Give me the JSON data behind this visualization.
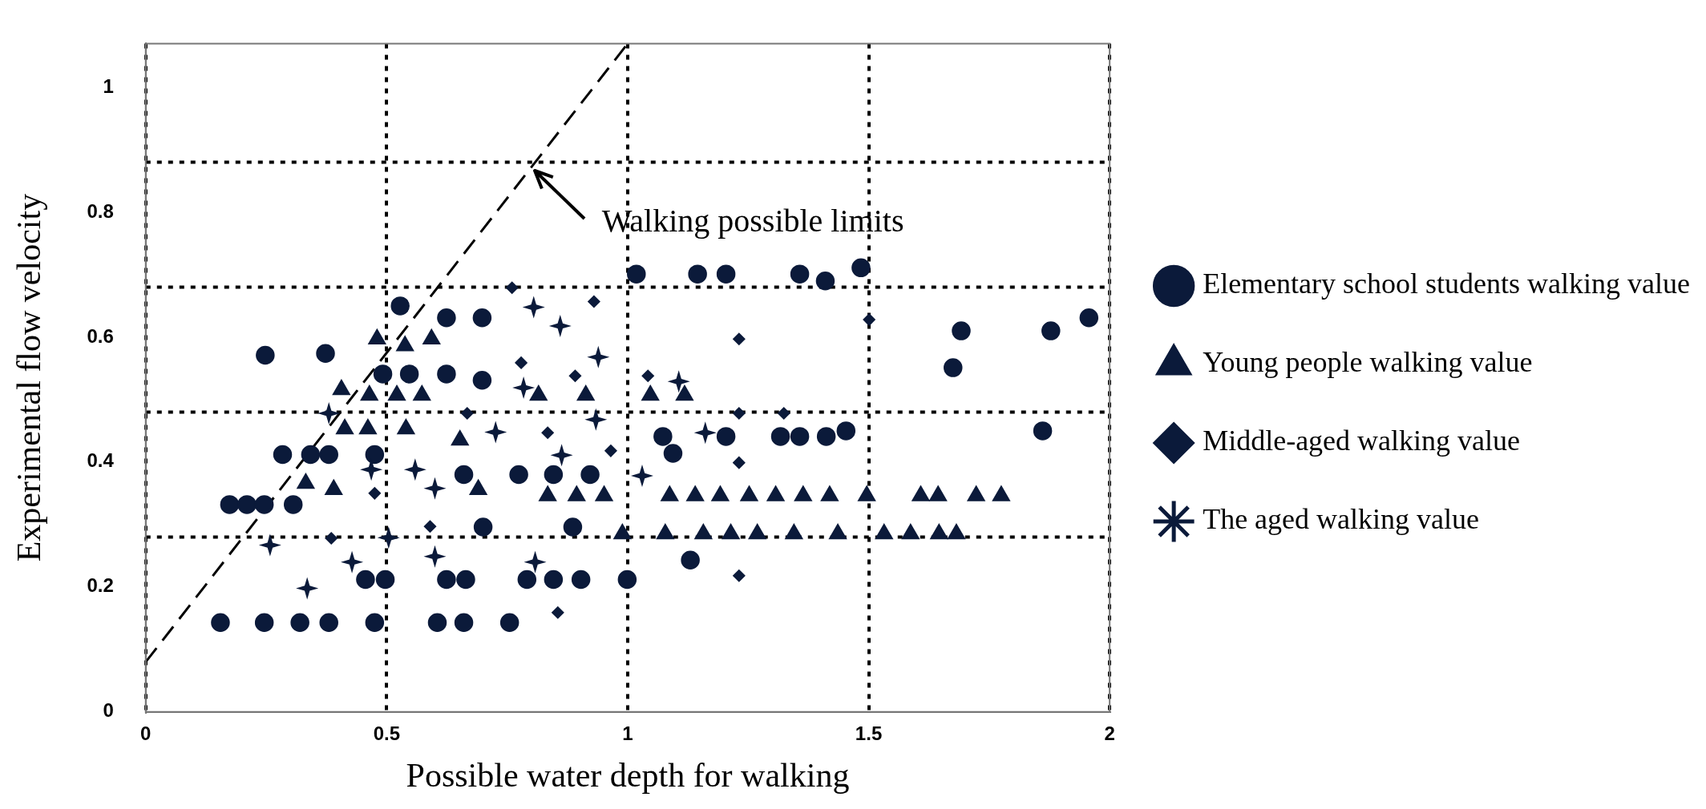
{
  "chart_data": {
    "type": "scatter",
    "xlabel": "Possible water depth for walking",
    "ylabel": "Experimental flow velocity",
    "xlim": [
      0,
      2
    ],
    "xticks": [
      0,
      0.5,
      1,
      1.5,
      2
    ],
    "ylim": [
      0,
      1.07
    ],
    "yticks": [
      0,
      0.2,
      0.4,
      0.6,
      0.8,
      1
    ],
    "grid": "x",
    "legend": "right",
    "series": [
      {
        "name": "Elementary school students walking value",
        "color": "#0b1a3a",
        "marker": "circle",
        "x": [
          0.155,
          0.246,
          0.32,
          0.38,
          0.475,
          0.605,
          0.66,
          0.755,
          0.456,
          0.497,
          0.624,
          0.664,
          0.791,
          0.846,
          0.903,
          0.999,
          0.7,
          0.886,
          0.174,
          0.21,
          0.246,
          0.306,
          0.284,
          0.342,
          0.38,
          0.475,
          0.66,
          0.774,
          0.846,
          0.922,
          1.073,
          1.204,
          1.317,
          1.357,
          1.412,
          1.453,
          1.861,
          1.094,
          1.13,
          1.018,
          1.145,
          1.204,
          1.357,
          1.41,
          1.484,
          1.692,
          1.878,
          1.957,
          1.675,
          0.528,
          0.624,
          0.698,
          0.248,
          0.373,
          0.492,
          0.547,
          0.624,
          0.698
        ],
        "values": [
          0.143,
          0.143,
          0.143,
          0.143,
          0.143,
          0.143,
          0.143,
          0.143,
          0.212,
          0.212,
          0.212,
          0.212,
          0.212,
          0.212,
          0.212,
          0.212,
          0.296,
          0.296,
          0.332,
          0.332,
          0.332,
          0.332,
          0.412,
          0.412,
          0.412,
          0.412,
          0.38,
          0.38,
          0.38,
          0.38,
          0.441,
          0.441,
          0.441,
          0.441,
          0.441,
          0.45,
          0.45,
          0.414,
          0.243,
          0.701,
          0.701,
          0.701,
          0.701,
          0.69,
          0.711,
          0.61,
          0.61,
          0.631,
          0.551,
          0.65,
          0.631,
          0.631,
          0.571,
          0.574,
          0.541,
          0.541,
          0.541,
          0.531
        ]
      },
      {
        "name": "Young people walking value",
        "color": "#0b1a3a",
        "marker": "triangle",
        "x": [
          0.413,
          0.461,
          0.54,
          0.652,
          0.332,
          0.39,
          0.69,
          0.834,
          0.894,
          0.951,
          1.087,
          1.14,
          1.192,
          1.252,
          1.307,
          1.364,
          1.419,
          1.496,
          1.608,
          1.644,
          1.723,
          1.775,
          0.989,
          1.078,
          1.157,
          1.214,
          1.269,
          1.345,
          1.436,
          1.532,
          1.587,
          1.646,
          1.682,
          0.48,
          0.538,
          0.593,
          0.406,
          0.464,
          0.521,
          0.573,
          0.815,
          0.913,
          1.047,
          1.118
        ],
        "values": [
          0.453,
          0.453,
          0.453,
          0.435,
          0.366,
          0.356,
          0.356,
          0.346,
          0.346,
          0.346,
          0.346,
          0.346,
          0.346,
          0.346,
          0.346,
          0.346,
          0.346,
          0.346,
          0.346,
          0.346,
          0.346,
          0.346,
          0.285,
          0.285,
          0.285,
          0.285,
          0.285,
          0.285,
          0.285,
          0.285,
          0.285,
          0.285,
          0.285,
          0.597,
          0.586,
          0.597,
          0.516,
          0.507,
          0.507,
          0.507,
          0.507,
          0.507,
          0.507,
          0.507
        ]
      },
      {
        "name": "Middle-aged walking value",
        "color": "#0b1a3a",
        "marker": "diamond",
        "x": [
          0.834,
          0.965,
          0.475,
          0.59,
          0.385,
          0.855,
          0.667,
          1.231,
          1.231,
          1.231,
          1.324,
          0.76,
          0.93,
          0.779,
          0.891,
          1.042,
          1.231,
          1.501
        ],
        "values": [
          0.447,
          0.418,
          0.35,
          0.297,
          0.278,
          0.159,
          0.478,
          0.399,
          0.218,
          0.478,
          0.478,
          0.679,
          0.657,
          0.559,
          0.538,
          0.538,
          0.597,
          0.628
        ]
      },
      {
        "name": "The aged walking value",
        "color": "#0b1a3a",
        "marker": "star",
        "x": [
          0.726,
          0.863,
          0.468,
          0.559,
          0.6,
          0.258,
          0.504,
          0.428,
          0.6,
          0.808,
          0.335,
          0.934,
          1.161,
          1.03,
          0.805,
          0.86,
          0.939,
          0.784,
          0.38,
          1.106
        ],
        "values": [
          0.448,
          0.411,
          0.388,
          0.388,
          0.358,
          0.267,
          0.279,
          0.24,
          0.249,
          0.24,
          0.198,
          0.468,
          0.447,
          0.378,
          0.648,
          0.618,
          0.568,
          0.519,
          0.478,
          0.529
        ]
      },
      {
        "type": "line",
        "color": "#000000",
        "marker": "none",
        "line_style": "dashed",
        "x": [
          0,
          1
        ],
        "values": [
          0.08,
          1.07
        ]
      }
    ],
    "ref_lines": [
      {
        "axis": "y",
        "value": 0.28,
        "color": "#000000",
        "line_style": "dotted"
      },
      {
        "axis": "y",
        "value": 0.48,
        "color": "#000000",
        "line_style": "dotted"
      },
      {
        "axis": "y",
        "value": 0.68,
        "color": "#000000",
        "line_style": "dotted"
      },
      {
        "axis": "y",
        "value": 0.88,
        "color": "#000000",
        "line_style": "dotted"
      }
    ],
    "annotations": [
      {
        "text": "Walking possible limits",
        "x": 0.8,
        "y": 0.872
      }
    ]
  }
}
